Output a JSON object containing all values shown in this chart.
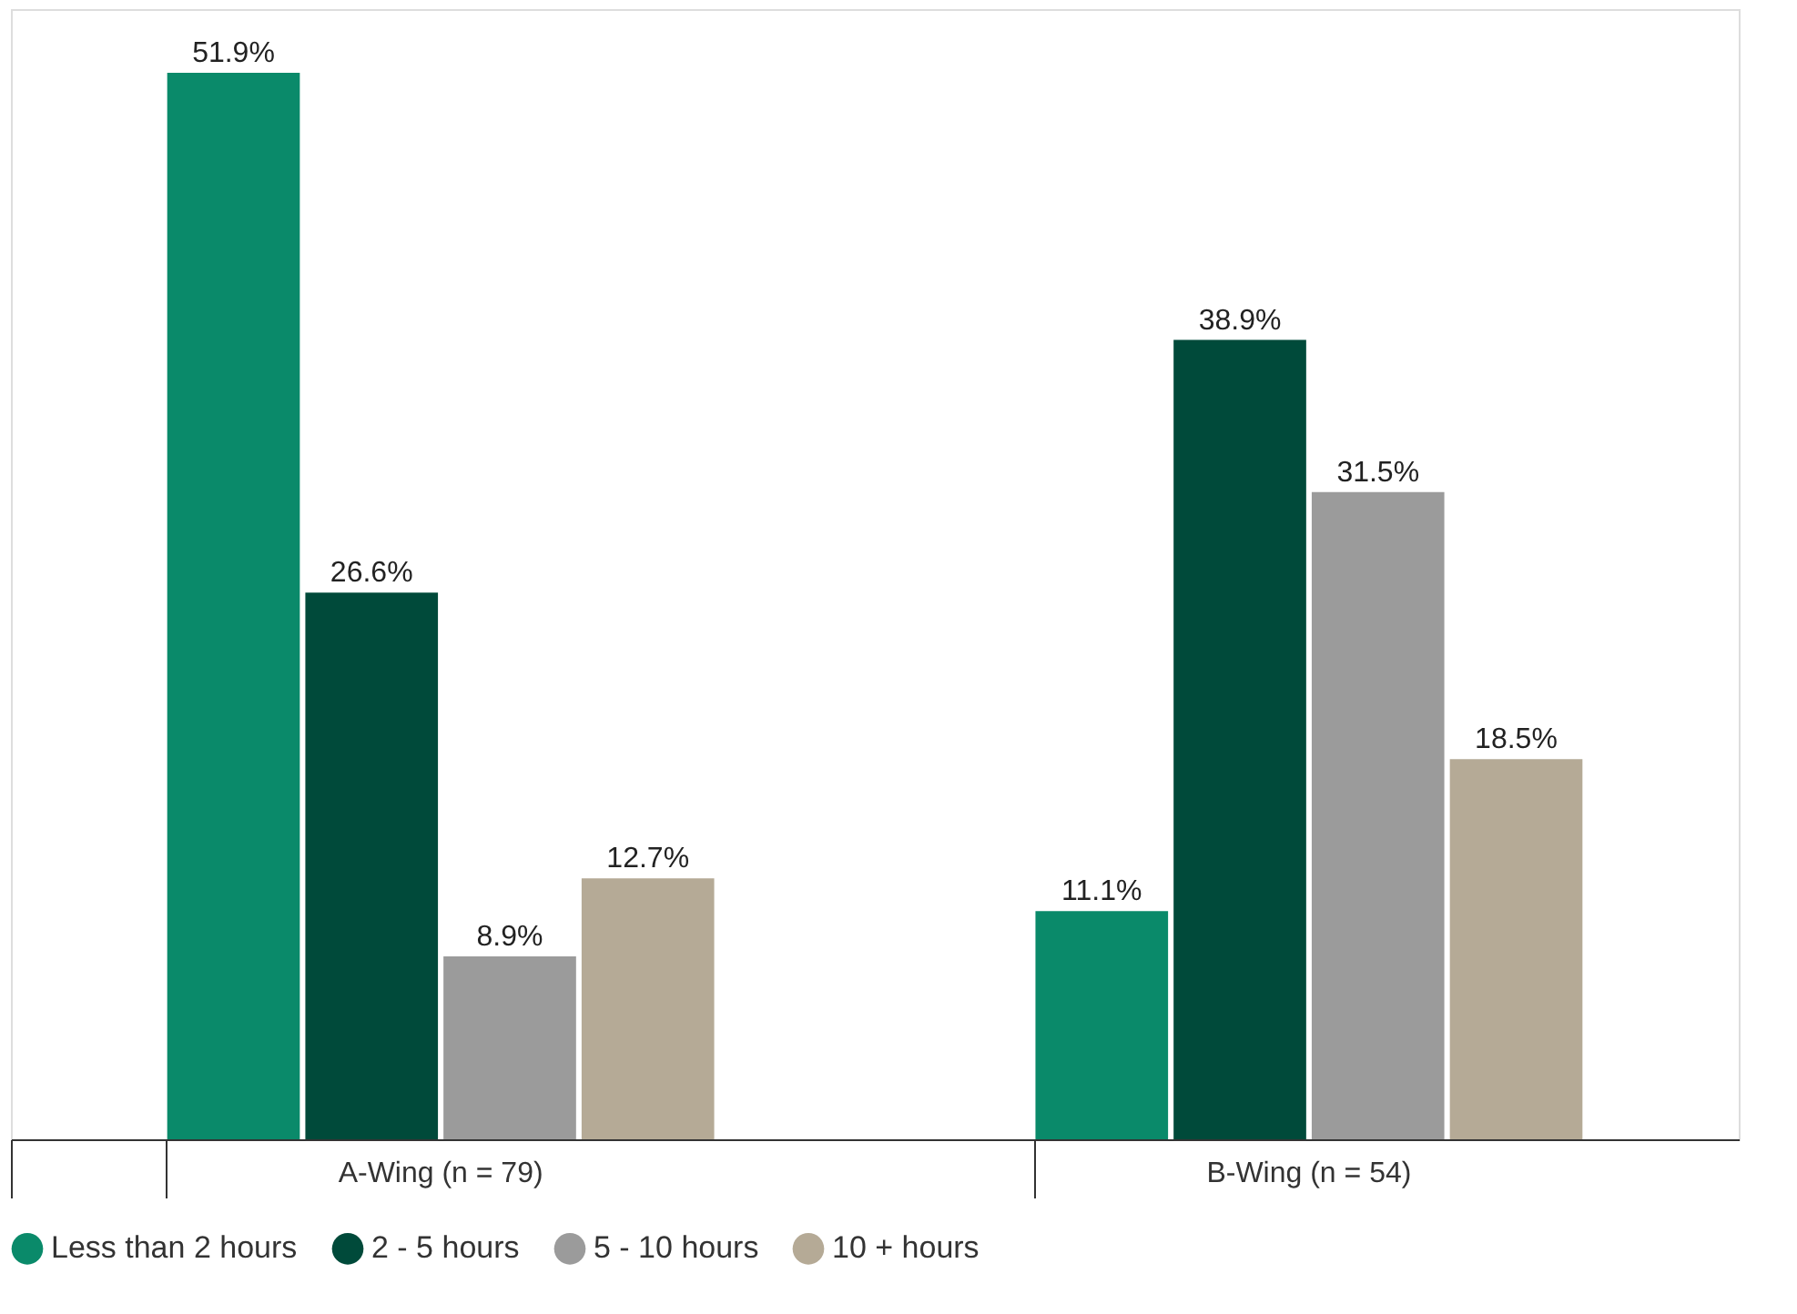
{
  "chart_data": {
    "type": "bar",
    "categories": [
      "A-Wing (n = 79)",
      "B-Wing (n = 54)"
    ],
    "series": [
      {
        "name": "Less than 2 hours",
        "color": "#0a8a6a",
        "values": [
          51.9,
          11.1
        ],
        "value_labels": [
          "51.9%",
          "11.1%"
        ]
      },
      {
        "name": "2 - 5 hours",
        "color": "#004a3a",
        "values": [
          26.6,
          38.9
        ],
        "value_labels": [
          "26.6%",
          "38.9%"
        ]
      },
      {
        "name": "5 - 10 hours",
        "color": "#9b9b9b",
        "values": [
          8.9,
          31.5
        ],
        "value_labels": [
          "8.9%",
          "31.5%"
        ]
      },
      {
        "name": "10 + hours",
        "color": "#b5aa96",
        "values": [
          12.7,
          18.5
        ],
        "value_labels": [
          "12.7%",
          "18.5%"
        ]
      }
    ],
    "legend": "bottom",
    "grid": false
  }
}
